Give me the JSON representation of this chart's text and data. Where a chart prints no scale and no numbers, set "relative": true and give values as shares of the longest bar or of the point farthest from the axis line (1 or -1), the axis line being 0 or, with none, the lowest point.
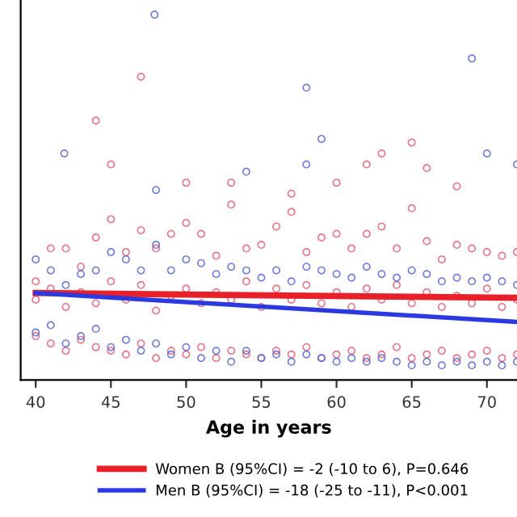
{
  "chart_data": {
    "type": "scatter",
    "relative": true,
    "xlabel": "Age in years",
    "xlim": [
      39,
      72
    ],
    "xticks": [
      40,
      45,
      50,
      55,
      60,
      65,
      70
    ],
    "legend": "bottom",
    "grid": false,
    "series": [
      {
        "marker": "circle",
        "color": "#e06078",
        "x": [
          44,
          47,
          65,
          66,
          45,
          62,
          63,
          68,
          50,
          53,
          60,
          57,
          40,
          40,
          40,
          41,
          41,
          41,
          42,
          42,
          42,
          43,
          43,
          43,
          44,
          44,
          44,
          45,
          45,
          45,
          46,
          46,
          46,
          47,
          47,
          47,
          48,
          48,
          48,
          49,
          49,
          49,
          50,
          50,
          50,
          51,
          51,
          51,
          52,
          52,
          52,
          53,
          53,
          53,
          54,
          54,
          54,
          55,
          55,
          55,
          56,
          56,
          56,
          57,
          57,
          57,
          58,
          58,
          58,
          59,
          59,
          59,
          60,
          60,
          60,
          61,
          61,
          61,
          62,
          62,
          62,
          63,
          63,
          63,
          64,
          64,
          64,
          65,
          65,
          65,
          66,
          66,
          66,
          67,
          67,
          67,
          68,
          68,
          68,
          69,
          69,
          69,
          70,
          70,
          70,
          71,
          71,
          71,
          72,
          72,
          72
        ],
        "values": [
          0.71,
          0.83,
          0.65,
          0.58,
          0.59,
          0.59,
          0.62,
          0.53,
          0.54,
          0.54,
          0.54,
          0.51,
          0.27,
          0.22,
          0.12,
          0.36,
          0.25,
          0.1,
          0.36,
          0.2,
          0.08,
          0.31,
          0.24,
          0.11,
          0.39,
          0.21,
          0.09,
          0.44,
          0.27,
          0.08,
          0.35,
          0.22,
          0.07,
          0.41,
          0.26,
          0.1,
          0.36,
          0.19,
          0.06,
          0.4,
          0.23,
          0.08,
          0.43,
          0.25,
          0.07,
          0.4,
          0.21,
          0.09,
          0.34,
          0.24,
          0.06,
          0.48,
          0.22,
          0.08,
          0.36,
          0.27,
          0.07,
          0.37,
          0.2,
          0.06,
          0.42,
          0.25,
          0.08,
          0.46,
          0.22,
          0.07,
          0.35,
          0.26,
          0.09,
          0.39,
          0.21,
          0.06,
          0.4,
          0.24,
          0.07,
          0.36,
          0.2,
          0.08,
          0.4,
          0.25,
          0.06,
          0.42,
          0.22,
          0.07,
          0.36,
          0.26,
          0.09,
          0.47,
          0.21,
          0.06,
          0.38,
          0.24,
          0.07,
          0.33,
          0.2,
          0.08,
          0.37,
          0.23,
          0.06,
          0.36,
          0.21,
          0.07,
          0.35,
          0.25,
          0.08,
          0.34,
          0.2,
          0.06,
          0.35,
          0.22,
          0.07
        ]
      },
      {
        "marker": "circle",
        "color": "#5a68d0",
        "x": [
          47.9,
          41.9,
          58,
          59,
          58,
          69,
          70,
          72,
          48,
          54,
          40,
          40,
          41,
          41,
          42,
          42,
          43,
          43,
          44,
          44,
          45,
          45,
          46,
          46,
          47,
          47,
          48,
          48,
          49,
          49,
          50,
          50,
          51,
          51,
          52,
          52,
          53,
          53,
          54,
          54,
          55,
          55,
          56,
          56,
          57,
          57,
          58,
          58,
          59,
          59,
          60,
          60,
          61,
          61,
          62,
          62,
          63,
          63,
          64,
          64,
          65,
          65,
          66,
          66,
          67,
          67,
          68,
          68,
          69,
          69,
          70,
          70,
          71,
          71,
          72,
          72
        ],
        "values": [
          1.0,
          0.62,
          0.8,
          0.66,
          0.59,
          0.88,
          0.62,
          0.59,
          0.52,
          0.57,
          0.33,
          0.13,
          0.3,
          0.15,
          0.26,
          0.1,
          0.29,
          0.12,
          0.3,
          0.14,
          0.35,
          0.09,
          0.33,
          0.11,
          0.3,
          0.08,
          0.37,
          0.1,
          0.3,
          0.07,
          0.33,
          0.09,
          0.32,
          0.06,
          0.29,
          0.08,
          0.31,
          0.05,
          0.3,
          0.08,
          0.28,
          0.06,
          0.3,
          0.07,
          0.27,
          0.05,
          0.31,
          0.07,
          0.3,
          0.06,
          0.29,
          0.05,
          0.28,
          0.06,
          0.31,
          0.05,
          0.29,
          0.06,
          0.28,
          0.05,
          0.3,
          0.04,
          0.29,
          0.05,
          0.27,
          0.04,
          0.28,
          0.05,
          0.27,
          0.04,
          0.28,
          0.05,
          0.27,
          0.04,
          0.26,
          0.05
        ]
      },
      {
        "type": "line",
        "name": "Women B (95%CI) = -2 (-10 to 6), P=0.646",
        "color": "#e8202a",
        "x": [
          40,
          72
        ],
        "values": [
          0.238,
          0.225
        ]
      },
      {
        "type": "line",
        "name": "Men B (95%CI) = -18 (-25 to -11), P<0.001",
        "color": "#2a3ae0",
        "x": [
          40,
          72
        ],
        "values": [
          0.238,
          0.159
        ]
      }
    ]
  }
}
